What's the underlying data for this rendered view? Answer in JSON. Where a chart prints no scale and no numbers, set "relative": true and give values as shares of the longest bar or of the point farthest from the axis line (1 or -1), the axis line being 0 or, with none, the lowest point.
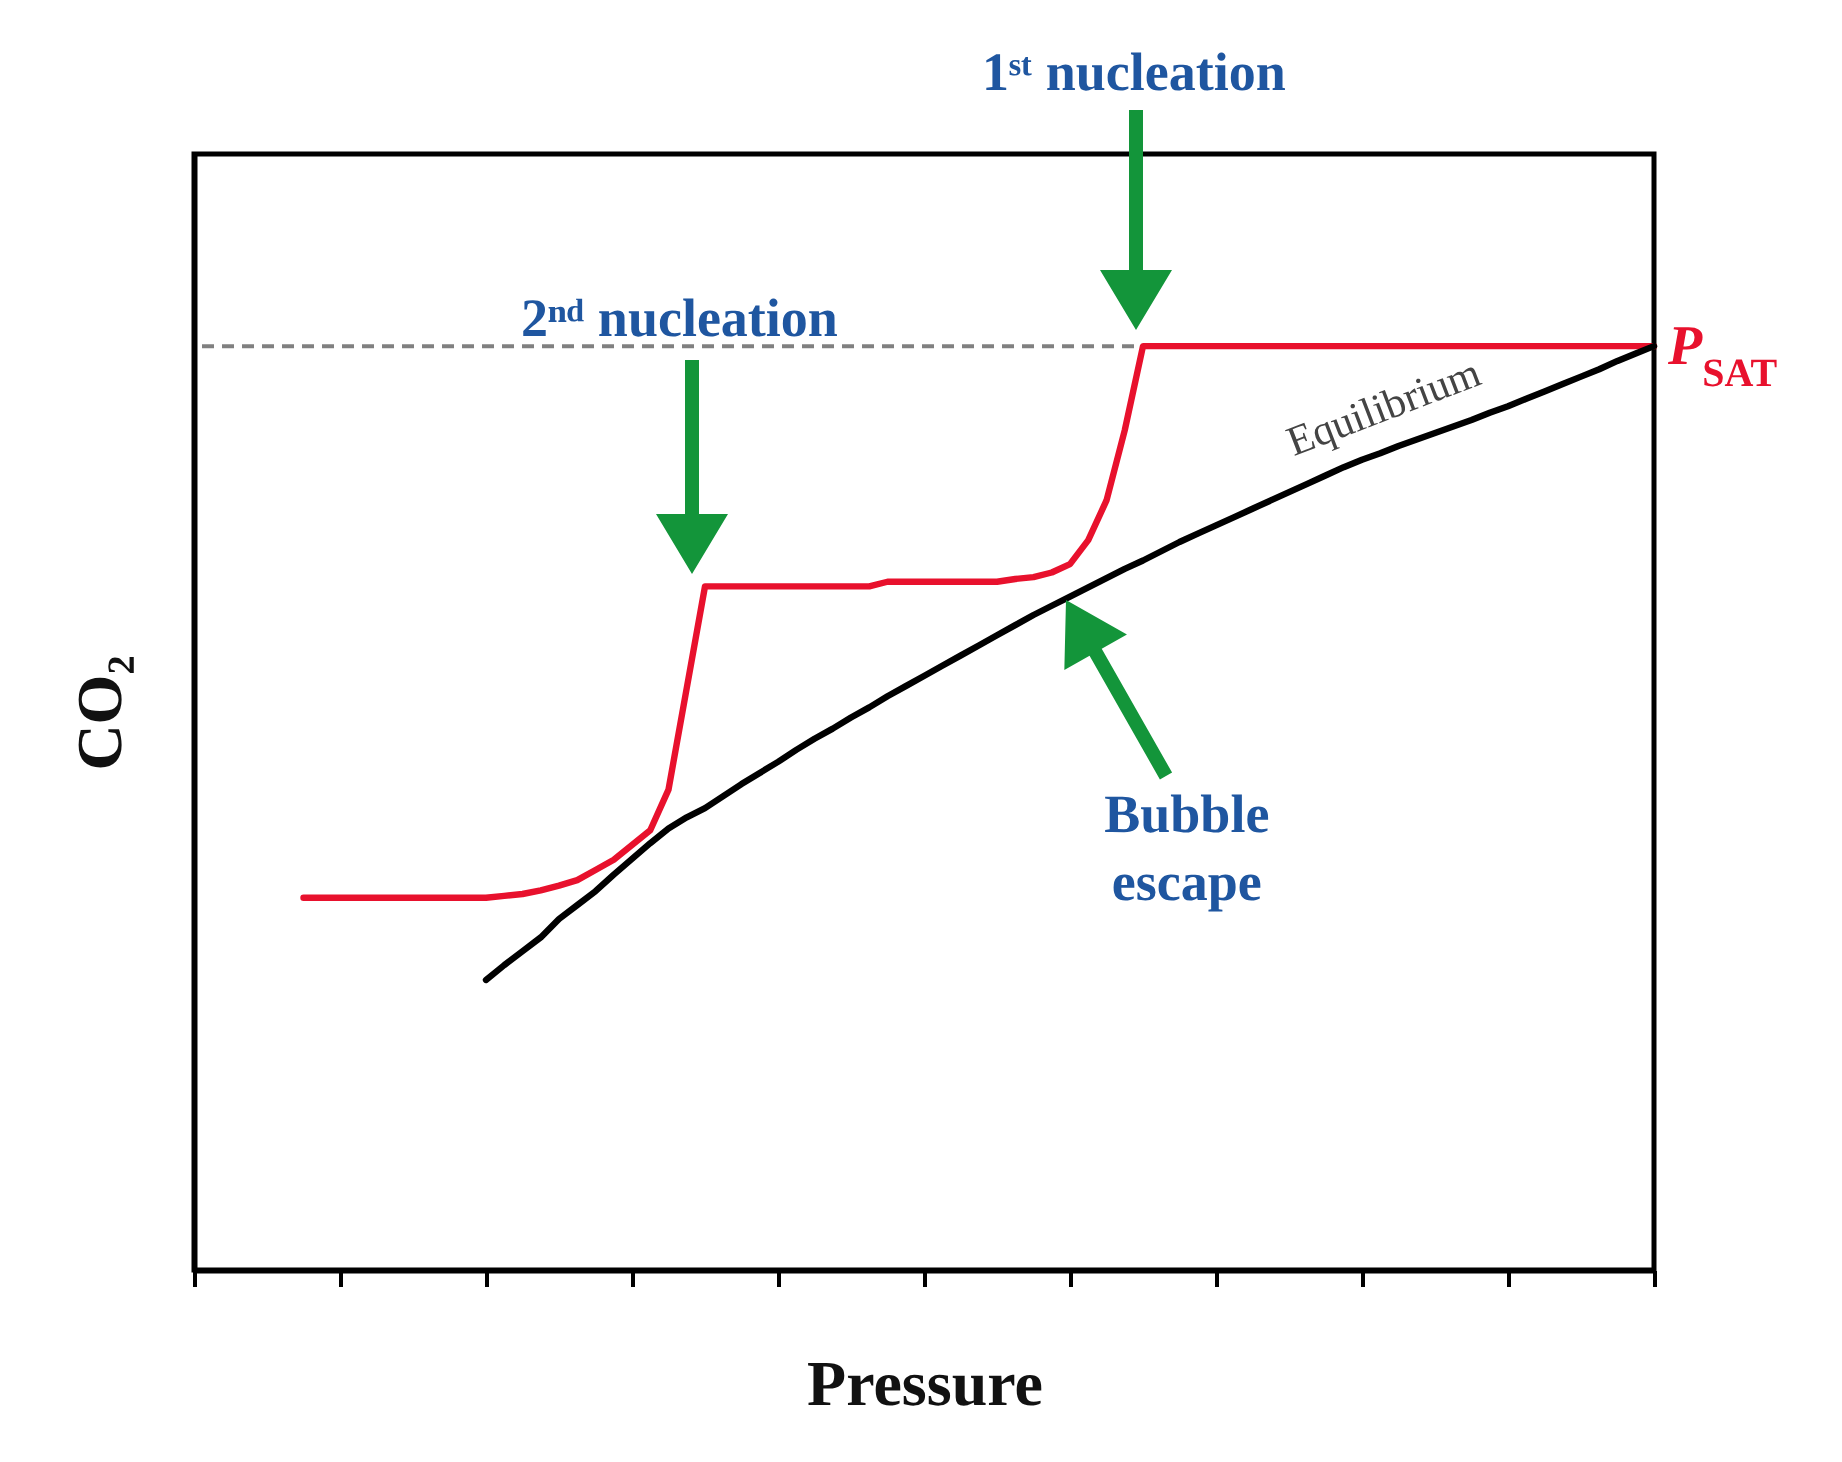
{
  "chart_data": {
    "type": "line",
    "xlabel": "Pressure",
    "ylabel": "CO₂",
    "relative": true,
    "grid": false,
    "line_style": "solid",
    "marker": "none",
    "categories": [
      null,
      null,
      null,
      null,
      null,
      null,
      null,
      null,
      null,
      null,
      null,
      null,
      null,
      null,
      null,
      null,
      null,
      null,
      null,
      null,
      null,
      null,
      null,
      null,
      null,
      null,
      null,
      null,
      null,
      null,
      null,
      null,
      null,
      null,
      null,
      null,
      null,
      null,
      null,
      null,
      null,
      null,
      null,
      null,
      null,
      null,
      null,
      null,
      null,
      null,
      null,
      null,
      null,
      null,
      null,
      null,
      null,
      null,
      null,
      null,
      null,
      null,
      null,
      null,
      null,
      null,
      null,
      null,
      null,
      null,
      null,
      null,
      null,
      null,
      null,
      null,
      null,
      null,
      null,
      null,
      null
    ],
    "series": [
      {
        "color": "#e8112d",
        "values": [
          null,
          null,
          null,
          null,
          null,
          null,
          0.403,
          0.403,
          0.403,
          0.403,
          0.403,
          0.403,
          0.403,
          0.403,
          0.403,
          0.403,
          0.403,
          0.405,
          0.407,
          0.411,
          0.416,
          0.422,
          0.433,
          0.444,
          0.46,
          0.476,
          0.52,
          0.63,
          0.74,
          0.74,
          0.74,
          0.74,
          0.74,
          0.74,
          0.74,
          0.74,
          0.74,
          0.74,
          0.745,
          0.745,
          0.745,
          0.745,
          0.745,
          0.745,
          0.745,
          0.748,
          0.75,
          0.755,
          0.764,
          0.79,
          0.833,
          0.909,
          1,
          1,
          1,
          1,
          1,
          1,
          1,
          1,
          1,
          1,
          1,
          1,
          1,
          1,
          1,
          1,
          1,
          1,
          1,
          1,
          1,
          1,
          1,
          1,
          1,
          1,
          1,
          1,
          1
        ]
      },
      {
        "name": "Equilibrium",
        "color": "#000000",
        "values": [
          null,
          null,
          null,
          null,
          null,
          null,
          null,
          null,
          null,
          null,
          null,
          null,
          null,
          null,
          null,
          null,
          0.314,
          0.33,
          0.345,
          0.36,
          0.38,
          0.395,
          0.41,
          0.428,
          0.445,
          0.462,
          0.478,
          0.49,
          0.5,
          0.513,
          0.526,
          0.538,
          0.55,
          0.563,
          0.575,
          0.586,
          0.598,
          0.609,
          0.621,
          0.632,
          0.643,
          0.654,
          0.665,
          0.676,
          0.687,
          0.698,
          0.709,
          0.719,
          0.729,
          0.739,
          0.749,
          0.759,
          0.768,
          0.778,
          0.788,
          0.797,
          0.806,
          0.815,
          0.824,
          0.833,
          0.842,
          0.851,
          0.86,
          0.869,
          0.877,
          0.884,
          0.892,
          0.899,
          0.906,
          0.913,
          0.92,
          0.928,
          0.935,
          0.943,
          0.951,
          0.959,
          0.967,
          0.975,
          0.984,
          0.992,
          1
        ]
      }
    ],
    "ref_lines": [
      {
        "axis": "y",
        "value": 1,
        "label": "P$_{SAT}$",
        "color": "#808080",
        "line_style": "dashed"
      }
    ],
    "annotations": [
      "1ˢᵗ nucleation",
      "2ⁿᵈ nucleation",
      "Bubble escape"
    ]
  }
}
